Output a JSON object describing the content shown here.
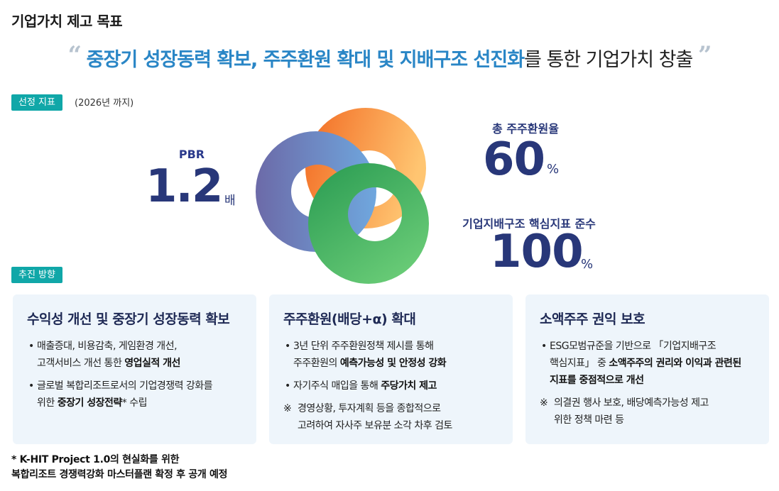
{
  "page_title": "기업가치 제고 목표",
  "headline": {
    "open_quote": "“",
    "highlight": "중장기 성장동력 확보, 주주환원 확대 및 지배구조 선진화",
    "rest": "를 통한 기업가치 창출",
    "close_quote": "”"
  },
  "section1": {
    "tag": "선정 지표",
    "note": "(2026년 까지)"
  },
  "pbr": {
    "label": "PBR",
    "value": "1.2",
    "unit": "배"
  },
  "shareholder_return": {
    "label": "총 주주환원율",
    "value": "60",
    "unit": "%"
  },
  "governance": {
    "label": "기업지배구조 핵심지표 준수",
    "value": "100",
    "unit": "%"
  },
  "section2": {
    "tag": "추진 방향"
  },
  "cards": [
    {
      "title": "수익성 개선 및 중장기 성장동력 확보",
      "items": [
        {
          "pre": "매출증대, 비용감축, 게임환경 개선,\n고객서비스 개선 통한 ",
          "bold": "영업실적 개선",
          "post": ""
        },
        {
          "pre": "글로벌 복합리조트로서의 기업경쟁력 강화를\n위한 ",
          "bold": "중장기 성장전략",
          "post": "* 수립"
        }
      ]
    },
    {
      "title": "주주환원(배당+α) 확대",
      "items": [
        {
          "pre": "3년 단위 주주환원정책 제시를 통해\n주주환원의 ",
          "bold": "예측가능성 및 안정성 강화",
          "post": ""
        },
        {
          "pre": "자기주식 매입을 통해 ",
          "bold": "주당가치 제고",
          "post": ""
        }
      ],
      "note": "경영상황, 투자계획 등을 종합적으로\n고려하여 자사주 보유분 소각 차후 검토"
    },
    {
      "title": "소액주주 권익 보호",
      "items": [
        {
          "pre": "ESG모범규준을 기반으로 「기업지배구조\n핵심지표」 중 ",
          "bold": "소액주주의 권리와 이익과 관련된\n지표를 중점적으로 개선",
          "post": ""
        }
      ],
      "note": "의결권 행사 보호, 배당예측가능성 제고\n위한 정책 마련 등"
    }
  ],
  "footnote": "* K-HIT Project 1.0의 현실화를 위한\n  복합리조트 경쟁력강화 마스터플랜 확정 후 공개 예정",
  "colors": {
    "accent_blue": "#2a86c6",
    "navy": "#283779",
    "tag_teal": "#10a7a8",
    "card_bg": "#eef5fb",
    "ring_orange": "#f7893a",
    "ring_blue": "#6d7fbf",
    "ring_green": "#3fb868"
  }
}
